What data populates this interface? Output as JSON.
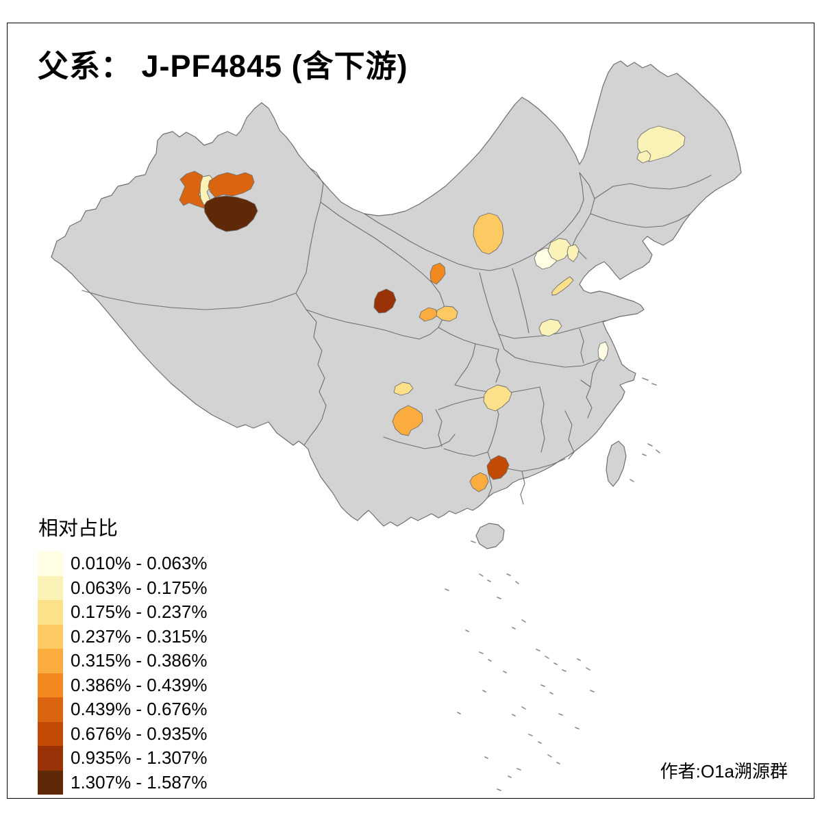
{
  "title": "父系： J-PF4845 (含下游)",
  "attribution": "作者:O1a溯源群",
  "legend": {
    "title": "相对占比",
    "items": [
      {
        "label": "0.010% - 0.063%",
        "color": "#FFFDE4"
      },
      {
        "label": "0.063% - 0.175%",
        "color": "#FBF2B7"
      },
      {
        "label": "0.175% - 0.237%",
        "color": "#FDE18A"
      },
      {
        "label": "0.237% - 0.315%",
        "color": "#FDC962"
      },
      {
        "label": "0.315% - 0.386%",
        "color": "#FBAC3F"
      },
      {
        "label": "0.386% - 0.439%",
        "color": "#F2891F"
      },
      {
        "label": "0.439% - 0.676%",
        "color": "#DB6410"
      },
      {
        "label": "0.676% - 0.935%",
        "color": "#C24A04"
      },
      {
        "label": "0.935% - 1.307%",
        "color": "#993206"
      },
      {
        "label": "1.307% - 1.587%",
        "color": "#5F2806"
      }
    ]
  },
  "map": {
    "land_color": "#D3D3D3",
    "border_color": "#6E6E6E",
    "sea_color": "#FFFFFF",
    "regions": [
      {
        "id": "xinjiang-west",
        "bin": 7,
        "range": "0.439% - 0.676%"
      },
      {
        "id": "xinjiang-center",
        "bin": 2,
        "range": "0.063% - 0.175%"
      },
      {
        "id": "xinjiang-northeast",
        "bin": 7,
        "range": "0.439% - 0.676%"
      },
      {
        "id": "xinjiang-southeast",
        "bin": 10,
        "range": "1.307% - 1.587%"
      },
      {
        "id": "heilongjiang-west",
        "bin": 2,
        "range": "0.063% - 0.175%"
      },
      {
        "id": "heilongjiang-southwest",
        "bin": 2,
        "range": "0.063% - 0.175%"
      },
      {
        "id": "inner-mongolia-west",
        "bin": 4,
        "range": "0.237% - 0.315%"
      },
      {
        "id": "ningxia",
        "bin": 6,
        "range": "0.386% - 0.439%"
      },
      {
        "id": "qinghai-east",
        "bin": 9,
        "range": "0.935% - 1.307%"
      },
      {
        "id": "gansu-west",
        "bin": 5,
        "range": "0.315% - 0.386%"
      },
      {
        "id": "gansu-east",
        "bin": 4,
        "range": "0.237% - 0.315%"
      },
      {
        "id": "hebei-northwest",
        "bin": 1,
        "range": "0.010% - 0.063%"
      },
      {
        "id": "beijing",
        "bin": 2,
        "range": "0.063% - 0.175%"
      },
      {
        "id": "tianjin",
        "bin": 2,
        "range": "0.063% - 0.175%"
      },
      {
        "id": "shandong-northwest",
        "bin": 3,
        "range": "0.175% - 0.237%"
      },
      {
        "id": "henan-northeast",
        "bin": 2,
        "range": "0.063% - 0.175%"
      },
      {
        "id": "jiangsu-central",
        "bin": 1,
        "range": "0.010% - 0.063%"
      },
      {
        "id": "sichuan-central",
        "bin": 3,
        "range": "0.175% - 0.237%"
      },
      {
        "id": "sichuan-south",
        "bin": 5,
        "range": "0.315% - 0.386%"
      },
      {
        "id": "guizhou-northeast",
        "bin": 3,
        "range": "0.175% - 0.237%"
      },
      {
        "id": "hunan-west",
        "bin": 8,
        "range": "0.676% - 0.935%"
      },
      {
        "id": "guangxi-northeast",
        "bin": 5,
        "range": "0.315% - 0.386%"
      }
    ]
  },
  "chart_data": {
    "type": "choropleth",
    "title": "父系： J-PF4845 (含下游)",
    "legend_title": "相对占比",
    "value_unit": "percent",
    "bins": [
      "0.010% - 0.063%",
      "0.063% - 0.175%",
      "0.175% - 0.237%",
      "0.237% - 0.315%",
      "0.315% - 0.386%",
      "0.386% - 0.439%",
      "0.439% - 0.676%",
      "0.676% - 0.935%",
      "0.935% - 1.307%",
      "1.307% - 1.587%"
    ],
    "regions": [
      {
        "id": "xinjiang-west",
        "value_range": "0.439% - 0.676%"
      },
      {
        "id": "xinjiang-center",
        "value_range": "0.063% - 0.175%"
      },
      {
        "id": "xinjiang-northeast",
        "value_range": "0.439% - 0.676%"
      },
      {
        "id": "xinjiang-southeast",
        "value_range": "1.307% - 1.587%"
      },
      {
        "id": "heilongjiang-west",
        "value_range": "0.063% - 0.175%"
      },
      {
        "id": "heilongjiang-southwest",
        "value_range": "0.063% - 0.175%"
      },
      {
        "id": "inner-mongolia-west",
        "value_range": "0.237% - 0.315%"
      },
      {
        "id": "ningxia",
        "value_range": "0.386% - 0.439%"
      },
      {
        "id": "qinghai-east",
        "value_range": "0.935% - 1.307%"
      },
      {
        "id": "gansu-west",
        "value_range": "0.315% - 0.386%"
      },
      {
        "id": "gansu-east",
        "value_range": "0.237% - 0.315%"
      },
      {
        "id": "hebei-northwest",
        "value_range": "0.010% - 0.063%"
      },
      {
        "id": "beijing",
        "value_range": "0.063% - 0.175%"
      },
      {
        "id": "tianjin",
        "value_range": "0.063% - 0.175%"
      },
      {
        "id": "shandong-northwest",
        "value_range": "0.175% - 0.237%"
      },
      {
        "id": "henan-northeast",
        "value_range": "0.063% - 0.175%"
      },
      {
        "id": "jiangsu-central",
        "value_range": "0.010% - 0.063%"
      },
      {
        "id": "sichuan-central",
        "value_range": "0.175% - 0.237%"
      },
      {
        "id": "sichuan-south",
        "value_range": "0.315% - 0.386%"
      },
      {
        "id": "guizhou-northeast",
        "value_range": "0.175% - 0.237%"
      },
      {
        "id": "hunan-west",
        "value_range": "0.676% - 0.935%"
      },
      {
        "id": "guangxi-northeast",
        "value_range": "0.315% - 0.386%"
      }
    ],
    "no_data_color": "#D3D3D3",
    "legend_position": "bottom-left"
  }
}
